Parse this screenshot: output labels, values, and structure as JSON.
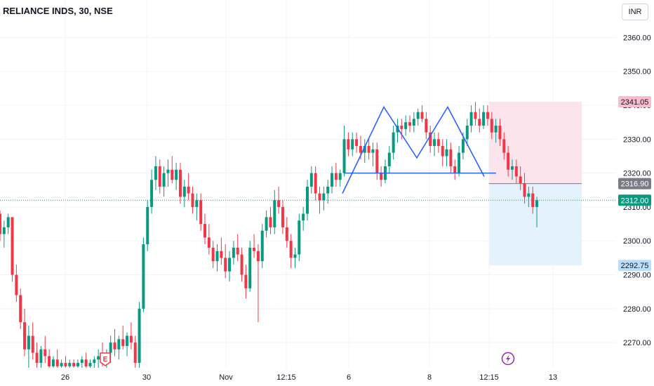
{
  "header": {
    "symbol_title": "RELIANCE INDS, 30, NSE",
    "currency_label": "INR"
  },
  "icons": {
    "earnings": "E",
    "dividend": "lightning-icon"
  },
  "colors": {
    "up": "#089981",
    "down": "#f23645",
    "pattern_line": "#2962ff",
    "stop_zone": "#fce4ec",
    "target_zone": "#e3f2fd",
    "last_price": "#089981",
    "entry": "#787b86"
  },
  "chart_data": {
    "type": "candlestick",
    "title": "RELIANCE INDS, 30, NSE",
    "ylim": [
      2262,
      2366
    ],
    "y_ticks": [
      2270,
      2280,
      2290,
      2300,
      2310,
      2320,
      2330,
      2340,
      2350,
      2360
    ],
    "x_tick_labels": [
      "26",
      "30",
      "Nov",
      "12:15",
      "6",
      "8",
      "12:15",
      "13"
    ],
    "grid": true,
    "price_tags": {
      "stop": "2341.05",
      "entry": "2316.90",
      "last": "2312.00",
      "target": "2292.75"
    },
    "position_tool": {
      "type": "short",
      "entry": 2316.9,
      "stop": 2341.05,
      "target": 2292.75
    },
    "last_price": 2312.0,
    "pattern": {
      "name": "double top",
      "peaks": [
        2339.5,
        2339.5
      ],
      "trough": 2324.5,
      "neckline": 2320
    },
    "candles_ohlc": [
      [
        2308,
        2309,
        2300,
        2302
      ],
      [
        2302,
        2306,
        2298,
        2304
      ],
      [
        2304,
        2308,
        2302,
        2307
      ],
      [
        2307,
        2307,
        2288,
        2290
      ],
      [
        2290,
        2293,
        2282,
        2284
      ],
      [
        2284,
        2286,
        2274,
        2276
      ],
      [
        2276,
        2280,
        2266,
        2268
      ],
      [
        2268,
        2275,
        2262,
        2272
      ],
      [
        2272,
        2276,
        2265,
        2267
      ],
      [
        2267,
        2270,
        2262,
        2264
      ],
      [
        2264,
        2269,
        2262,
        2268
      ],
      [
        2268,
        2272,
        2264,
        2266
      ],
      [
        2266,
        2268,
        2262,
        2263
      ],
      [
        2263,
        2266,
        2262,
        2265
      ],
      [
        2265,
        2268,
        2262,
        2263
      ],
      [
        2263,
        2265,
        2262,
        2264
      ],
      [
        2264,
        2266,
        2262,
        2263
      ],
      [
        2263,
        2265,
        2262,
        2264
      ],
      [
        2264,
        2265,
        2262,
        2263
      ],
      [
        2263,
        2265,
        2262,
        2264
      ],
      [
        2264,
        2266,
        2262,
        2265
      ],
      [
        2265,
        2267,
        2262,
        2263
      ],
      [
        2263,
        2265,
        2262,
        2264
      ],
      [
        2264,
        2266,
        2262,
        2265
      ],
      [
        2265,
        2268,
        2262,
        2266
      ],
      [
        2266,
        2270,
        2263,
        2264
      ],
      [
        2264,
        2268,
        2262,
        2267
      ],
      [
        2267,
        2272,
        2264,
        2270
      ],
      [
        2270,
        2274,
        2266,
        2268
      ],
      [
        2268,
        2272,
        2265,
        2271
      ],
      [
        2271,
        2275,
        2268,
        2269
      ],
      [
        2269,
        2273,
        2266,
        2272
      ],
      [
        2272,
        2276,
        2268,
        2270
      ],
      [
        2270,
        2272,
        2262,
        2264
      ],
      [
        2264,
        2282,
        2262,
        2280
      ],
      [
        2280,
        2301,
        2279,
        2299
      ],
      [
        2299,
        2312,
        2297,
        2310
      ],
      [
        2310,
        2321,
        2308,
        2318
      ],
      [
        2318,
        2325,
        2315,
        2322
      ],
      [
        2322,
        2324,
        2314,
        2316
      ],
      [
        2316,
        2322,
        2313,
        2320
      ],
      [
        2320,
        2324,
        2316,
        2321
      ],
      [
        2321,
        2325,
        2317,
        2318
      ],
      [
        2318,
        2323,
        2315,
        2321
      ],
      [
        2321,
        2323,
        2311,
        2313
      ],
      [
        2313,
        2318,
        2310,
        2316
      ],
      [
        2316,
        2320,
        2312,
        2314
      ],
      [
        2314,
        2316,
        2308,
        2310
      ],
      [
        2310,
        2314,
        2306,
        2312
      ],
      [
        2312,
        2314,
        2303,
        2305
      ],
      [
        2305,
        2308,
        2299,
        2301
      ],
      [
        2301,
        2305,
        2296,
        2298
      ],
      [
        2298,
        2300,
        2292,
        2294
      ],
      [
        2294,
        2299,
        2291,
        2297
      ],
      [
        2297,
        2301,
        2293,
        2295
      ],
      [
        2295,
        2299,
        2289,
        2291
      ],
      [
        2291,
        2297,
        2288,
        2295
      ],
      [
        2295,
        2300,
        2293,
        2298
      ],
      [
        2298,
        2302,
        2294,
        2296
      ],
      [
        2296,
        2298,
        2288,
        2290
      ],
      [
        2290,
        2293,
        2283,
        2286
      ],
      [
        2286,
        2300,
        2285,
        2298
      ],
      [
        2298,
        2302,
        2295,
        2297
      ],
      [
        2297,
        2299,
        2276,
        2294
      ],
      [
        2294,
        2305,
        2292,
        2303
      ],
      [
        2303,
        2309,
        2301,
        2307
      ],
      [
        2307,
        2310,
        2302,
        2304
      ],
      [
        2304,
        2315,
        2302,
        2312
      ],
      [
        2312,
        2316,
        2308,
        2310
      ],
      [
        2310,
        2312,
        2302,
        2304
      ],
      [
        2304,
        2307,
        2298,
        2300
      ],
      [
        2300,
        2302,
        2292,
        2295
      ],
      [
        2295,
        2298,
        2292,
        2296
      ],
      [
        2296,
        2308,
        2294,
        2306
      ],
      [
        2306,
        2310,
        2303,
        2308
      ],
      [
        2308,
        2318,
        2306,
        2316
      ],
      [
        2316,
        2322,
        2314,
        2320
      ],
      [
        2320,
        2322,
        2312,
        2314
      ],
      [
        2314,
        2316,
        2308,
        2312
      ],
      [
        2312,
        2316,
        2309,
        2314
      ],
      [
        2314,
        2318,
        2311,
        2316
      ],
      [
        2316,
        2322,
        2314,
        2320
      ],
      [
        2320,
        2323,
        2316,
        2318
      ],
      [
        2318,
        2321,
        2316,
        2320
      ],
      [
        2320,
        2334,
        2319,
        2330
      ],
      [
        2330,
        2332,
        2325,
        2327
      ],
      [
        2327,
        2332,
        2325,
        2330
      ],
      [
        2330,
        2332,
        2326,
        2328
      ],
      [
        2328,
        2331,
        2324,
        2326
      ],
      [
        2326,
        2330,
        2323,
        2328
      ],
      [
        2328,
        2330,
        2324,
        2326
      ],
      [
        2326,
        2329,
        2322,
        2327
      ],
      [
        2327,
        2329,
        2318,
        2320
      ],
      [
        2320,
        2322,
        2316,
        2318
      ],
      [
        2318,
        2324,
        2317,
        2322
      ],
      [
        2322,
        2328,
        2320,
        2326
      ],
      [
        2326,
        2334,
        2324,
        2332
      ],
      [
        2332,
        2336,
        2329,
        2334
      ],
      [
        2334,
        2336,
        2330,
        2333
      ],
      [
        2333,
        2337,
        2331,
        2335
      ],
      [
        2335,
        2337,
        2332,
        2334
      ],
      [
        2334,
        2338,
        2332,
        2336
      ],
      [
        2336,
        2339,
        2334,
        2338
      ],
      [
        2338,
        2340,
        2335,
        2336
      ],
      [
        2336,
        2338,
        2330,
        2332
      ],
      [
        2332,
        2334,
        2326,
        2328
      ],
      [
        2328,
        2332,
        2325,
        2330
      ],
      [
        2330,
        2332,
        2326,
        2328
      ],
      [
        2328,
        2330,
        2322,
        2325
      ],
      [
        2325,
        2330,
        2322,
        2327
      ],
      [
        2327,
        2329,
        2320,
        2322
      ],
      [
        2322,
        2324,
        2318,
        2320
      ],
      [
        2320,
        2328,
        2319,
        2326
      ],
      [
        2326,
        2332,
        2324,
        2330
      ],
      [
        2330,
        2336,
        2328,
        2334
      ],
      [
        2334,
        2340,
        2332,
        2338
      ],
      [
        2338,
        2341,
        2334,
        2336
      ],
      [
        2336,
        2339,
        2332,
        2334
      ],
      [
        2334,
        2340,
        2333,
        2338
      ],
      [
        2338,
        2340,
        2334,
        2336
      ],
      [
        2336,
        2338,
        2330,
        2332
      ],
      [
        2332,
        2336,
        2329,
        2334
      ],
      [
        2334,
        2336,
        2328,
        2330
      ],
      [
        2330,
        2332,
        2324,
        2326
      ],
      [
        2326,
        2328,
        2319,
        2321
      ],
      [
        2321,
        2324,
        2318,
        2322
      ],
      [
        2322,
        2324,
        2317,
        2319
      ],
      [
        2319,
        2322,
        2315,
        2317
      ],
      [
        2317,
        2320,
        2311,
        2313
      ],
      [
        2313,
        2316,
        2310,
        2314
      ],
      [
        2314,
        2316,
        2308,
        2310
      ],
      [
        2310,
        2313,
        2304,
        2312
      ]
    ]
  }
}
